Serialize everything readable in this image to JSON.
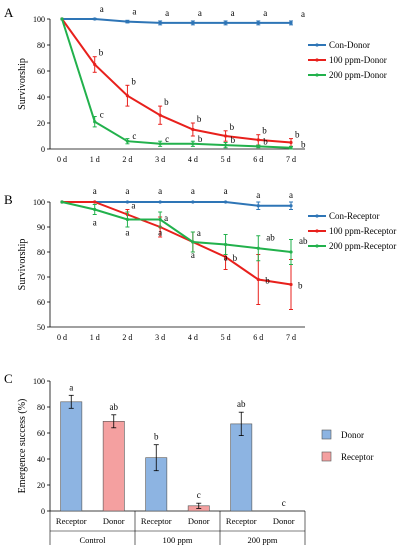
{
  "chart_data": [
    {
      "panel": "A",
      "type": "line",
      "x": [
        "0 d",
        "1 d",
        "2 d",
        "3 d",
        "4 d",
        "5 d",
        "6 d",
        "7 d"
      ],
      "ylabel": "Survivorship",
      "ylim": [
        0,
        100
      ],
      "yticks": [
        0,
        20,
        40,
        60,
        80,
        100
      ],
      "legend_position": "right",
      "series": [
        {
          "name": "Con-Donor",
          "color": "#2e75b6",
          "values": [
            100,
            100,
            98,
            97,
            97,
            97,
            97,
            97
          ],
          "errors": [
            0,
            0.5,
            1,
            1.5,
            1.5,
            1.5,
            1.5,
            1.5
          ],
          "labels": [
            "",
            "a",
            "a",
            "a",
            "a",
            "a",
            "a",
            "a"
          ]
        },
        {
          "name": "100 ppm-Donor",
          "color": "#e8201c",
          "values": [
            100,
            65,
            41,
            26,
            15,
            10,
            7,
            5
          ],
          "errors": [
            0,
            6,
            8,
            7,
            5,
            4,
            4,
            3
          ],
          "labels": [
            "",
            "b",
            "b",
            "b",
            "b",
            "b",
            "b",
            "b"
          ]
        },
        {
          "name": "200 ppm-Donor",
          "color": "#22b14c",
          "values": [
            100,
            21,
            6,
            4,
            4,
            3,
            2,
            1
          ],
          "errors": [
            0,
            4,
            2,
            2,
            2,
            2,
            1,
            1
          ],
          "labels": [
            "",
            "c",
            "c",
            "c",
            "b",
            "b",
            "b",
            "b"
          ]
        }
      ]
    },
    {
      "panel": "B",
      "type": "line",
      "x": [
        "0 d",
        "1 d",
        "2 d",
        "3 d",
        "4 d",
        "5 d",
        "6 d",
        "7 d"
      ],
      "ylabel": "Survivorship",
      "ylim": [
        50,
        100
      ],
      "yticks": [
        50,
        60,
        70,
        80,
        90,
        100
      ],
      "legend_position": "right",
      "series": [
        {
          "name": "Con-Receptor",
          "color": "#2e75b6",
          "values": [
            100,
            100,
            100,
            100,
            100,
            100,
            98.5,
            98.5
          ],
          "errors": [
            0,
            0,
            0,
            0,
            0,
            0,
            1.5,
            1.5
          ],
          "labels": [
            "",
            "a",
            "a",
            "a",
            "a",
            "a",
            "a",
            "a"
          ]
        },
        {
          "name": "100 ppm-Receptor",
          "color": "#e8201c",
          "values": [
            100,
            100,
            95,
            90,
            84,
            78,
            69,
            67
          ],
          "errors": [
            0,
            0,
            2,
            4,
            4,
            5,
            10,
            10
          ],
          "labels": [
            "",
            "",
            "a",
            "a",
            "a",
            "b",
            "b",
            "b"
          ]
        },
        {
          "name": "200 ppm-Receptor",
          "color": "#22b14c",
          "values": [
            100,
            97,
            93,
            93,
            84,
            83,
            81.5,
            80
          ],
          "errors": [
            0,
            2,
            3,
            3,
            4,
            4,
            5,
            5
          ],
          "labels": [
            "",
            "a",
            "a",
            "a",
            "a",
            "a",
            "ab",
            "ab"
          ]
        }
      ]
    },
    {
      "panel": "C",
      "type": "bar",
      "ylabel": "Emergence success (%)",
      "ylim": [
        0,
        100
      ],
      "yticks": [
        0,
        20,
        40,
        60,
        80,
        100
      ],
      "legend_position": "right",
      "groups": [
        "Control",
        "100 ppm",
        "200 ppm"
      ],
      "categories": [
        "Receptor",
        "Donor",
        "Receptor",
        "Donor",
        "Receptor",
        "Donor"
      ],
      "legend": [
        {
          "name": "Donor",
          "color": "#8db4e2"
        },
        {
          "name": "Receptor",
          "color": "#f4a0a0"
        }
      ],
      "bars": [
        {
          "value": 84,
          "error": 5,
          "color": "#8db4e2",
          "label": "a"
        },
        {
          "value": 69,
          "error": 5,
          "color": "#f4a0a0",
          "label": "ab"
        },
        {
          "value": 41,
          "error": 10,
          "color": "#8db4e2",
          "label": "b"
        },
        {
          "value": 4,
          "error": 2,
          "color": "#f4a0a0",
          "label": "c"
        },
        {
          "value": 67,
          "error": 9,
          "color": "#8db4e2",
          "label": "ab"
        },
        {
          "value": 0,
          "error": 0,
          "color": "#f4a0a0",
          "label": "c"
        }
      ]
    }
  ]
}
